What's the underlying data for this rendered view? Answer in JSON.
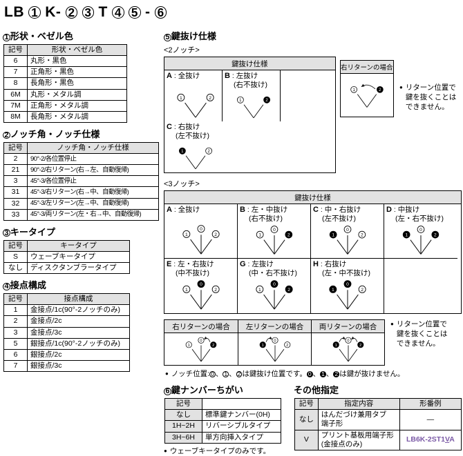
{
  "bullet": "●",
  "colors": {
    "model_number": "#7b5aa6",
    "table_header_bg": "#e2e2e2"
  },
  "title": "LB {1} K- {2} {3} T {4} {5} - {6}",
  "sections": {
    "s1": {
      "heading": "{1}形状・ベゼル色",
      "table": {
        "headers": [
          "記号",
          "形状・ベゼル色"
        ],
        "rows": [
          [
            "6",
            "丸形・黒色"
          ],
          [
            "7",
            "正角形・黒色"
          ],
          [
            "8",
            "長角形・黒色"
          ],
          [
            "6M",
            "丸形・メタル調"
          ],
          [
            "7M",
            "正角形・メタル調"
          ],
          [
            "8M",
            "長角形・メタル調"
          ]
        ]
      }
    },
    "s2": {
      "heading": "{2}ノッチ角・ノッチ仕様",
      "table": {
        "headers": [
          "記号",
          "ノッチ角・ノッチ仕様"
        ],
        "rows": [
          [
            "2",
            "90°-2/各位置停止"
          ],
          [
            "21",
            "90°-2/右リターン(右→左、自動復帰)"
          ],
          [
            "3",
            "45°-3/各位置停止"
          ],
          [
            "31",
            "45°-3/右リターン(右→中、自動復帰)"
          ],
          [
            "32",
            "45°-3/左リターン(左→中、自動復帰)"
          ],
          [
            "33",
            "45°-3/両リターン(左・右→中、自動復帰)"
          ]
        ]
      }
    },
    "s3": {
      "heading": "{3}キータイプ",
      "table": {
        "headers": [
          "記号",
          "キータイプ"
        ],
        "rows": [
          [
            "S",
            "ウェーブキータイプ"
          ],
          [
            "なし",
            "ディスクタンブラータイプ"
          ]
        ]
      }
    },
    "s4": {
      "heading": "{4}接点構成",
      "table": {
        "headers": [
          "記号",
          "接点構成"
        ],
        "rows": [
          [
            "1",
            "金接点/1c(90°-2ノッチのみ)"
          ],
          [
            "2",
            "金接点/2c"
          ],
          [
            "3",
            "金接点/3c"
          ],
          [
            "5",
            "銀接点/1c(90°-2ノッチのみ)"
          ],
          [
            "6",
            "銀接点/2c"
          ],
          [
            "7",
            "銀接点/3c"
          ]
        ]
      }
    },
    "s5": {
      "heading": "{5}鍵抜け仕様",
      "notch2": {
        "label": "<2ノッチ>",
        "table_header": "鍵抜け仕様",
        "cells": [
          {
            "code": "A",
            "name": "全抜け",
            "sub": "",
            "diagram": {
              "type": 2,
              "notches": [
                {
                  "n": "1",
                  "filled": false
                },
                {
                  "n": "2",
                  "filled": false
                }
              ],
              "arrows": []
            }
          },
          {
            "code": "B",
            "name": "左抜け",
            "sub": "(右不抜け)",
            "diagram": {
              "type": 2,
              "notches": [
                {
                  "n": "1",
                  "filled": false
                },
                {
                  "n": "2",
                  "filled": true
                }
              ],
              "arrows": []
            }
          },
          {
            "code": "C",
            "name": "右抜け",
            "sub": "(左不抜け)",
            "diagram": {
              "type": 2,
              "notches": [
                {
                  "n": "1",
                  "filled": true
                },
                {
                  "n": "2",
                  "filled": false
                }
              ],
              "arrows": []
            }
          }
        ],
        "return_box": {
          "header": "右リターンの場合",
          "diagram": {
            "type": 2,
            "notches": [
              {
                "n": "1",
                "filled": false
              },
              {
                "n": "2",
                "filled": true
              }
            ],
            "arrows": [
              "right"
            ]
          }
        },
        "note": "リターン位置で鍵を抜くことはできません。"
      },
      "notch3": {
        "label": "<3ノッチ>",
        "table_header": "鍵抜け仕様",
        "cells": [
          {
            "code": "A",
            "name": "全抜け",
            "sub": "",
            "diagram": {
              "type": 3,
              "notches": [
                {
                  "n": "1",
                  "filled": false
                },
                {
                  "n": "0",
                  "filled": false
                },
                {
                  "n": "2",
                  "filled": false
                }
              ],
              "arrows": []
            }
          },
          {
            "code": "B",
            "name": "左・中抜け",
            "sub": "(右不抜け)",
            "diagram": {
              "type": 3,
              "notches": [
                {
                  "n": "1",
                  "filled": false
                },
                {
                  "n": "0",
                  "filled": false
                },
                {
                  "n": "2",
                  "filled": true
                }
              ],
              "arrows": []
            }
          },
          {
            "code": "C",
            "name": "中・右抜け",
            "sub": "(左不抜け)",
            "diagram": {
              "type": 3,
              "notches": [
                {
                  "n": "1",
                  "filled": true
                },
                {
                  "n": "0",
                  "filled": false
                },
                {
                  "n": "2",
                  "filled": false
                }
              ],
              "arrows": []
            }
          },
          {
            "code": "D",
            "name": "中抜け",
            "sub": "(左・右不抜け)",
            "diagram": {
              "type": 3,
              "notches": [
                {
                  "n": "1",
                  "filled": true
                },
                {
                  "n": "0",
                  "filled": false
                },
                {
                  "n": "2",
                  "filled": true
                }
              ],
              "arrows": []
            }
          },
          {
            "code": "E",
            "name": "左・右抜け",
            "sub": "(中不抜け)",
            "diagram": {
              "type": 3,
              "notches": [
                {
                  "n": "1",
                  "filled": false
                },
                {
                  "n": "0",
                  "filled": true
                },
                {
                  "n": "2",
                  "filled": false
                }
              ],
              "arrows": []
            }
          },
          {
            "code": "G",
            "name": "左抜け",
            "sub": "(中・右不抜け)",
            "diagram": {
              "type": 3,
              "notches": [
                {
                  "n": "1",
                  "filled": false
                },
                {
                  "n": "0",
                  "filled": true
                },
                {
                  "n": "2",
                  "filled": true
                }
              ],
              "arrows": []
            }
          },
          {
            "code": "H",
            "name": "右抜け",
            "sub": "(左・中不抜け)",
            "diagram": {
              "type": 3,
              "notches": [
                {
                  "n": "1",
                  "filled": true
                },
                {
                  "n": "0",
                  "filled": true
                },
                {
                  "n": "2",
                  "filled": false
                }
              ],
              "arrows": []
            }
          },
          {
            "code": "",
            "name": "",
            "sub": "",
            "diagram": null
          }
        ],
        "return_cases": [
          {
            "header": "右リターンの場合",
            "diagram": {
              "type": 3,
              "notches": [
                {
                  "n": "1",
                  "filled": false
                },
                {
                  "n": "0",
                  "filled": false
                },
                {
                  "n": "2",
                  "filled": true
                }
              ],
              "arrows": [
                "right"
              ]
            }
          },
          {
            "header": "左リターンの場合",
            "diagram": {
              "type": 3,
              "notches": [
                {
                  "n": "1",
                  "filled": true
                },
                {
                  "n": "0",
                  "filled": false
                },
                {
                  "n": "2",
                  "filled": false
                }
              ],
              "arrows": [
                "left"
              ]
            }
          },
          {
            "header": "両リターンの場合",
            "diagram": {
              "type": 3,
              "notches": [
                {
                  "n": "1",
                  "filled": true
                },
                {
                  "n": "0",
                  "filled": false
                },
                {
                  "n": "2",
                  "filled": true
                }
              ],
              "arrows": [
                "left",
                "right"
              ]
            }
          }
        ],
        "note": "リターン位置で鍵を抜くことはできません。",
        "notch_note": "ノッチ位置:{0}、{1}、{2}は鍵抜け位置です。{0f}、{1f}、{2f}は鍵が抜けません。"
      }
    },
    "s6": {
      "heading": "{6}鍵ナンバーちがい",
      "table": {
        "headers": [
          "記号",
          ""
        ],
        "rows": [
          [
            "なし",
            "標準鍵ナンバー(0H)"
          ],
          [
            "1H~2H",
            "リバーシブルタイプ"
          ],
          [
            "3H~6H",
            "単方向挿入タイプ"
          ]
        ]
      },
      "note": "ウェーブキータイプのみです。"
    },
    "other": {
      "heading": "その他指定",
      "table": {
        "headers": [
          "記号",
          "指定内容",
          "形番例"
        ],
        "rows": [
          [
            "なし",
            "はんだづけ兼用タブ\n端子形",
            {
              "text": "—"
            }
          ],
          [
            "V",
            "プリント基板用端子形\n(金接点のみ)",
            {
              "model": {
                "prefix": "LB6K-2ST1",
                "underline": "V",
                "suffix": "A"
              }
            }
          ]
        ]
      }
    }
  }
}
